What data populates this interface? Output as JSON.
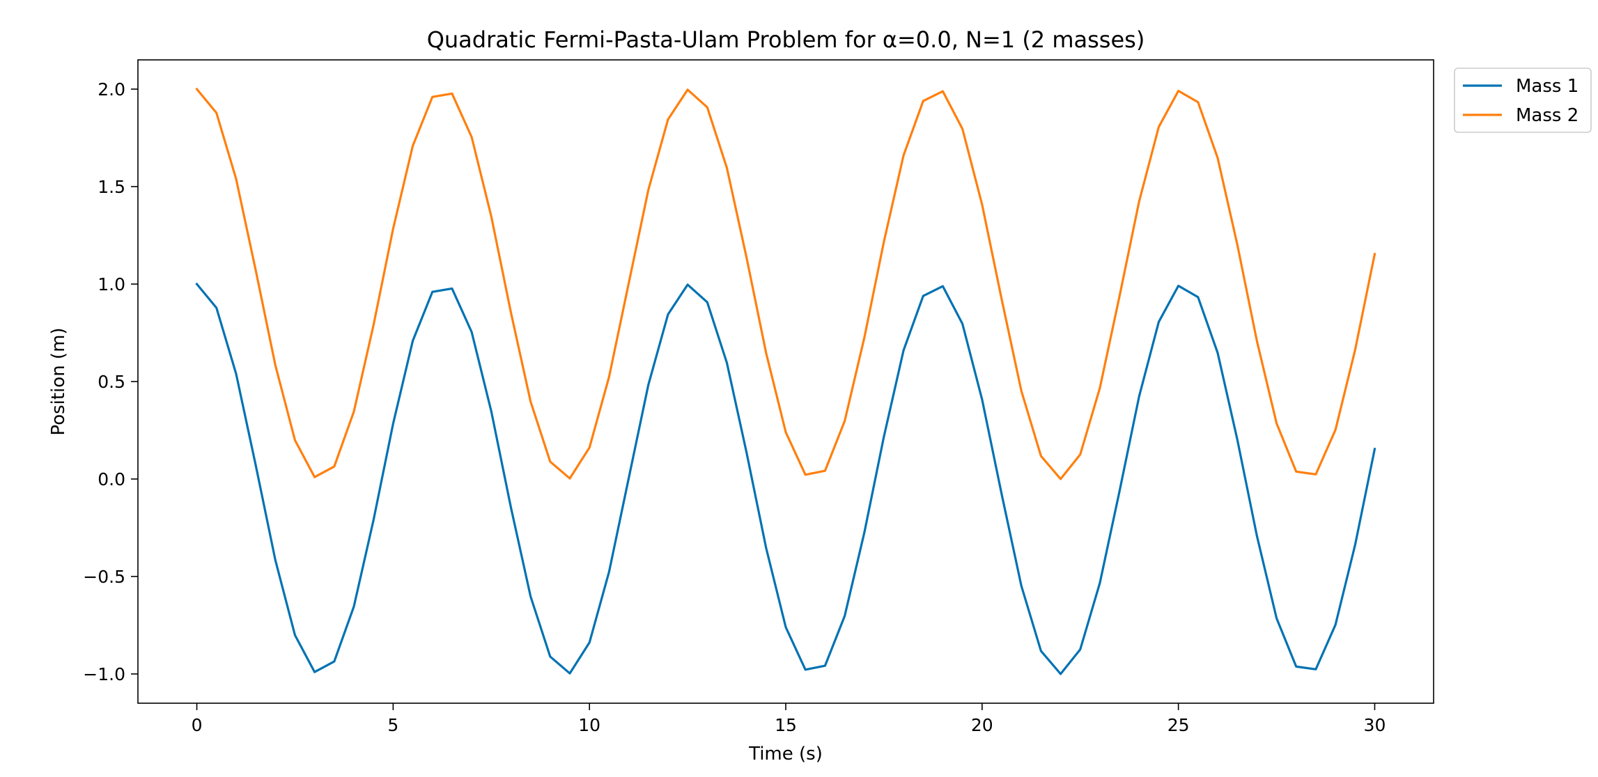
{
  "chart_data": {
    "type": "line",
    "title": "Quadratic Fermi-Pasta-Ulam Problem for α=0.0, N=1 (2 masses)",
    "xlabel": "Time (s)",
    "ylabel": "Position (m)",
    "xlim": [
      -1.5,
      31.5
    ],
    "ylim": [
      -1.15,
      2.15
    ],
    "xticks": [
      0,
      5,
      10,
      15,
      20,
      25,
      30
    ],
    "xtick_labels": [
      "0",
      "5",
      "10",
      "15",
      "20",
      "25",
      "30"
    ],
    "yticks": [
      -1.0,
      -0.5,
      0.0,
      0.5,
      1.0,
      1.5,
      2.0
    ],
    "ytick_labels": [
      "−1.0",
      "−0.5",
      "0.0",
      "0.5",
      "1.0",
      "1.5",
      "2.0"
    ],
    "grid": false,
    "legend_position": "outside-top-right",
    "series": [
      {
        "name": "Mass 1",
        "color": "#0072B2",
        "x": [
          0,
          0.5,
          1,
          1.5,
          2,
          2.5,
          3,
          3.5,
          4,
          4.5,
          5,
          5.5,
          6,
          6.5,
          7,
          7.5,
          8,
          8.5,
          9,
          9.5,
          10,
          10.5,
          11,
          11.5,
          12,
          12.5,
          13,
          13.5,
          14,
          14.5,
          15,
          15.5,
          16,
          16.5,
          17,
          17.5,
          18,
          18.5,
          19,
          19.5,
          20,
          20.5,
          21,
          21.5,
          22,
          22.5,
          23,
          23.5,
          24,
          24.5,
          25,
          25.5,
          26,
          26.5,
          27,
          27.5,
          28,
          28.5,
          29,
          29.5,
          30
        ],
        "y": [
          1.0,
          0.878,
          0.54,
          0.071,
          -0.416,
          -0.801,
          -0.99,
          -0.936,
          -0.654,
          -0.211,
          0.284,
          0.709,
          0.96,
          0.977,
          0.754,
          0.347,
          -0.146,
          -0.602,
          -0.911,
          -0.997,
          -0.839,
          -0.476,
          0.004,
          0.483,
          0.844,
          0.997,
          0.907,
          0.596,
          0.137,
          -0.354,
          -0.76,
          -0.978,
          -0.958,
          -0.703,
          -0.276,
          0.218,
          0.66,
          0.939,
          0.989,
          0.796,
          0.408,
          -0.079,
          -0.548,
          -0.882,
          -1.0,
          -0.874,
          -0.533,
          -0.063,
          0.424,
          0.806,
          0.991,
          0.933,
          0.647,
          0.203,
          -0.292,
          -0.714,
          -0.962,
          -0.976,
          -0.748,
          -0.339,
          0.154
        ]
      },
      {
        "name": "Mass 2",
        "color": "#FF7F0E",
        "x": [
          0,
          0.5,
          1,
          1.5,
          2,
          2.5,
          3,
          3.5,
          4,
          4.5,
          5,
          5.5,
          6,
          6.5,
          7,
          7.5,
          8,
          8.5,
          9,
          9.5,
          10,
          10.5,
          11,
          11.5,
          12,
          12.5,
          13,
          13.5,
          14,
          14.5,
          15,
          15.5,
          16,
          16.5,
          17,
          17.5,
          18,
          18.5,
          19,
          19.5,
          20,
          20.5,
          21,
          21.5,
          22,
          22.5,
          23,
          23.5,
          24,
          24.5,
          25,
          25.5,
          26,
          26.5,
          27,
          27.5,
          28,
          28.5,
          29,
          29.5,
          30
        ],
        "y": [
          2.0,
          1.878,
          1.54,
          1.071,
          0.584,
          0.199,
          0.01,
          0.064,
          0.346,
          0.789,
          1.284,
          1.709,
          1.96,
          1.977,
          1.754,
          1.347,
          0.854,
          0.398,
          0.089,
          0.003,
          0.161,
          0.524,
          1.004,
          1.483,
          1.844,
          1.997,
          1.907,
          1.596,
          1.137,
          0.646,
          0.24,
          0.022,
          0.042,
          0.297,
          0.724,
          1.218,
          1.66,
          1.939,
          1.989,
          1.796,
          1.408,
          0.921,
          0.452,
          0.118,
          0.0,
          0.126,
          0.467,
          0.937,
          1.424,
          1.806,
          1.991,
          1.933,
          1.647,
          1.203,
          0.708,
          0.286,
          0.038,
          0.024,
          0.252,
          0.661,
          1.154
        ]
      }
    ]
  }
}
